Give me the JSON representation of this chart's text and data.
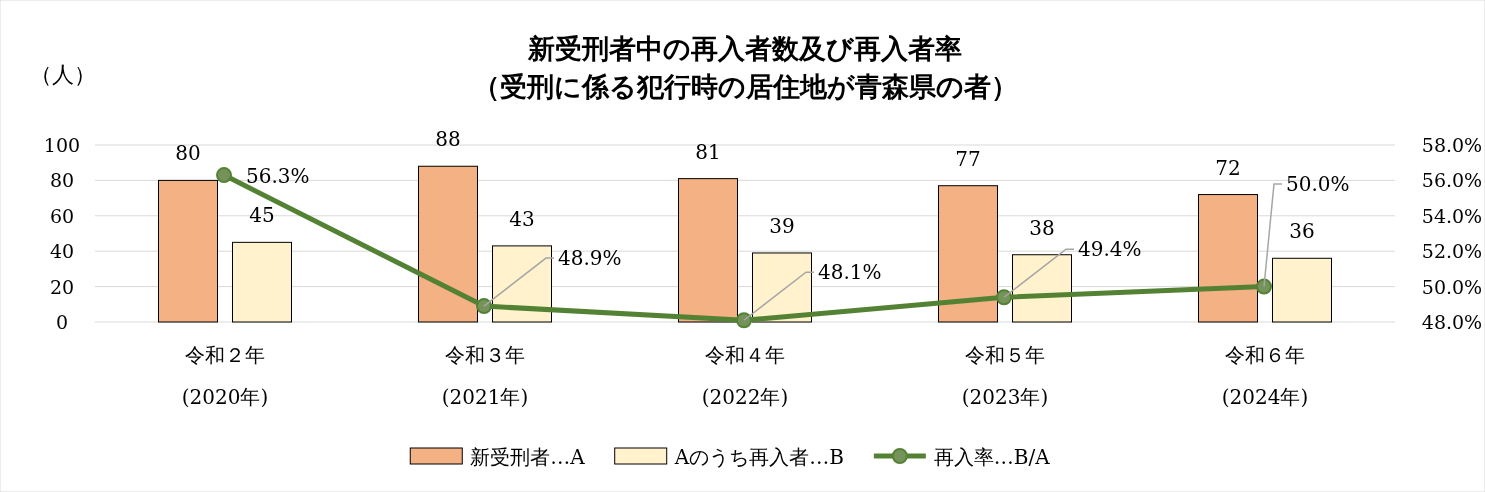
{
  "chart_data": {
    "type": "bar",
    "title": "新受刑者中の再入者数及び再入者率",
    "subtitle": "（受刑に係る犯行時の居住地が青森県の者）",
    "ylabel": "（人）",
    "categories": [
      "令和２年\n(2020年)",
      "令和３年\n(2021年)",
      "令和４年\n(2022年)",
      "令和５年\n(2023年)",
      "令和６年\n(2024年)"
    ],
    "series": [
      {
        "name": "新受刑者…A",
        "color": "#f4b183",
        "values": [
          80,
          88,
          81,
          77,
          72
        ],
        "value_labels": [
          "80",
          "88",
          "81",
          "77",
          "72"
        ]
      },
      {
        "name": "Aのうち再入者…B",
        "color": "#fff2cc",
        "values": [
          45,
          43,
          39,
          38,
          36
        ],
        "value_labels": [
          "45",
          "43",
          "39",
          "38",
          "36"
        ]
      },
      {
        "name": "再入率…B/A",
        "type": "line",
        "axis": "y2",
        "color": "#548235",
        "marker": "circle",
        "values": [
          56.3,
          48.9,
          48.1,
          49.4,
          50.0
        ],
        "value_labels": [
          "56.3%",
          "48.9%",
          "48.1%",
          "49.4%",
          "50.0%"
        ]
      }
    ],
    "ylim": [
      0,
      100
    ],
    "yticks": [
      0,
      20,
      40,
      60,
      80,
      100
    ],
    "y2lim": [
      48,
      58
    ],
    "y2ticks": [
      {
        "value": 48,
        "label": "48.0%"
      },
      {
        "value": 50,
        "label": "50.0%"
      },
      {
        "value": 52,
        "label": "52.0%"
      },
      {
        "value": 54,
        "label": "54.0%"
      },
      {
        "value": 56,
        "label": "56.0%"
      },
      {
        "value": 58,
        "label": "58.0%"
      }
    ],
    "grid": "y",
    "legend": "bottom"
  }
}
